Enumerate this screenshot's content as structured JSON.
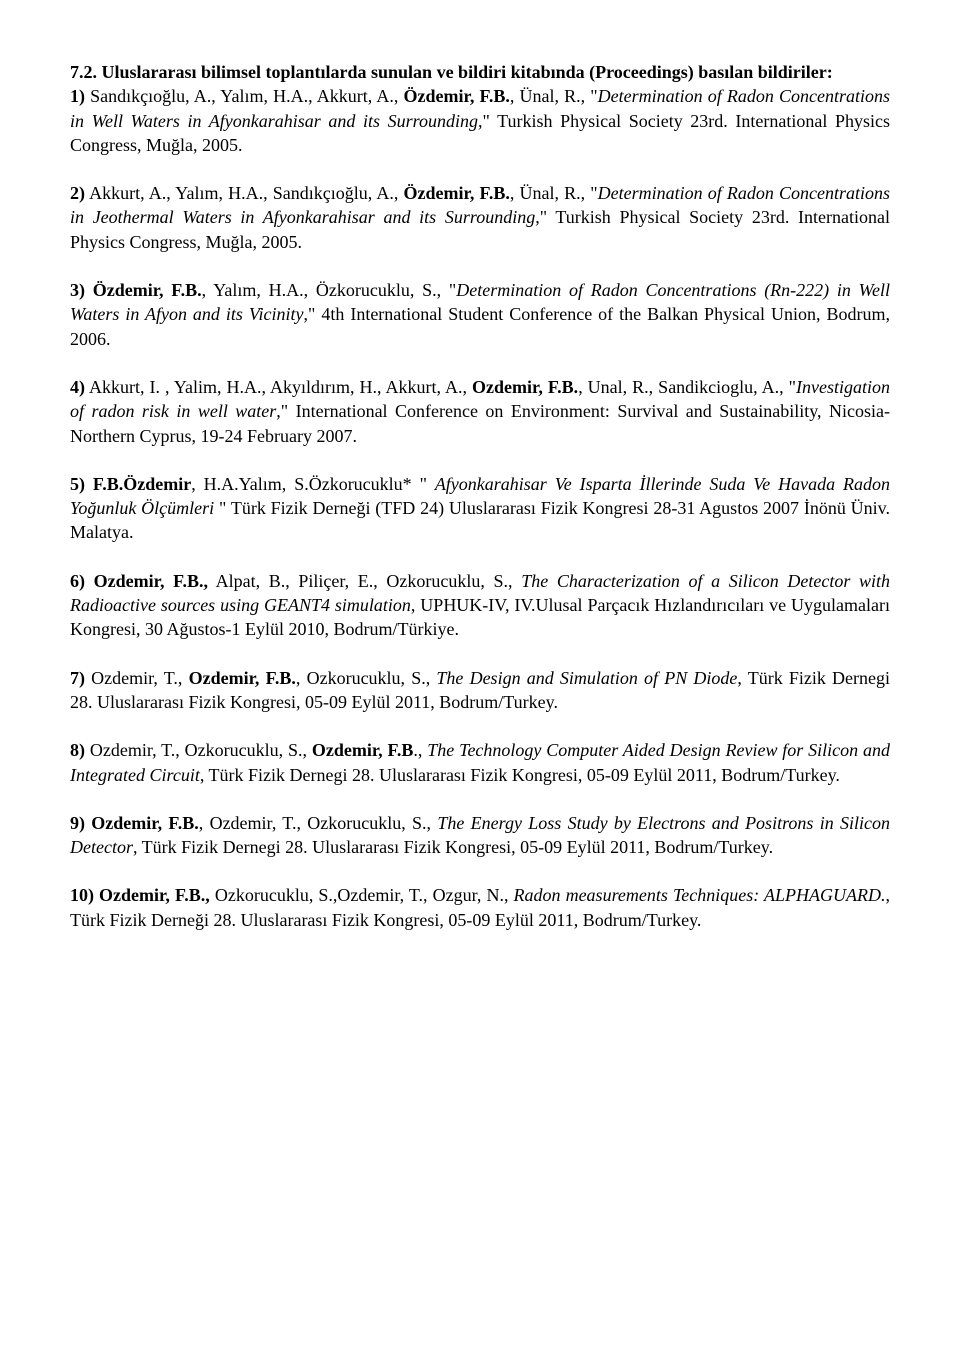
{
  "heading": "7.2. Uluslararası bilimsel toplantılarda sunulan ve bildiri kitabında (Proceedings) basılan bildiriler:",
  "entries": [
    {
      "parts": [
        {
          "t": "1) ",
          "b": true
        },
        {
          "t": "Sandıkçıoğlu, A., Yalım, H.A., Akkurt, A., "
        },
        {
          "t": "Özdemir, F.B.",
          "b": true
        },
        {
          "t": ", Ünal, R., \""
        },
        {
          "t": "Determination of Radon Concentrations in Well Waters in Afyonkarahisar and its Surrounding",
          "i": true
        },
        {
          "t": ",\" Turkish Physical Society 23rd. International Physics Congress, Muğla, 2005."
        }
      ]
    },
    {
      "parts": [
        {
          "t": "2)",
          "b": true
        },
        {
          "t": " Akkurt, A., Yalım, H.A., Sandıkçıoğlu, A., "
        },
        {
          "t": "Özdemir, F.B.",
          "b": true
        },
        {
          "t": ", Ünal, R., \""
        },
        {
          "t": "Determination of Radon Concentrations in Jeothermal Waters in Afyonkarahisar and its Surrounding",
          "i": true
        },
        {
          "t": ",\" Turkish Physical Society 23rd. International Physics Congress, Muğla, 2005."
        }
      ]
    },
    {
      "parts": [
        {
          "t": "3) Özdemir, F.B.",
          "b": true
        },
        {
          "t": ", Yalım, H.A., Özkorucuklu, S., \""
        },
        {
          "t": "Determination of Radon Concentrations (Rn-222) in Well Waters in Afyon and its Vicinity",
          "i": true
        },
        {
          "t": ",\" 4th International Student Conference of the Balkan Physical Union, Bodrum, 2006."
        }
      ]
    },
    {
      "parts": [
        {
          "t": "4)",
          "b": true
        },
        {
          "t": " Akkurt, I. , Yalim, H.A., Akyıldırım, H., Akkurt, A., "
        },
        {
          "t": "Ozdemir, F.B.",
          "b": true
        },
        {
          "t": ", Unal, R., Sandikcioglu, A., \""
        },
        {
          "t": "Investigation of radon risk in well water",
          "i": true
        },
        {
          "t": ",\" International Conference on Environment: Survival and Sustainability, Nicosia-Northern Cyprus, 19-24 February 2007."
        }
      ]
    },
    {
      "parts": [
        {
          "t": "5) F.B.Özdemir",
          "b": true
        },
        {
          "t": ", H.A.Yalım, S.Özkorucuklu* \" "
        },
        {
          "t": "Afyonkarahisar Ve Isparta İllerinde Suda Ve Havada Radon Yoğunluk Ölçümleri",
          "i": true
        },
        {
          "t": " \" Türk Fizik Derneği (TFD 24) Uluslararası Fizik Kongresi 28-31 Agustos 2007 İnönü Üniv. Malatya."
        }
      ]
    },
    {
      "parts": [
        {
          "t": "6) Ozdemir, F.B.,",
          "b": true
        },
        {
          "t": " Alpat, B., Piliçer, E., Ozkorucuklu, S., "
        },
        {
          "t": "The Characterization of a Silicon Detector with Radioactive sources using GEANT4 simulation",
          "i": true
        },
        {
          "t": ", UPHUK-IV, IV.Ulusal Parçacık Hızlandırıcıları ve Uygulamaları Kongresi, 30 Ağustos-1 Eylül 2010, Bodrum/Türkiye."
        }
      ]
    },
    {
      "parts": [
        {
          "t": "7)",
          "b": true
        },
        {
          "t": " Ozdemir, T., "
        },
        {
          "t": "Ozdemir, F.B.",
          "b": true
        },
        {
          "t": ", Ozkorucuklu, S., "
        },
        {
          "t": "The Design and Simulation of PN Diode",
          "i": true
        },
        {
          "t": ", Türk Fizik Dernegi 28. Uluslararası Fizik Kongresi, 05-09 Eylül 2011, Bodrum/Turkey."
        }
      ]
    },
    {
      "parts": [
        {
          "t": "8)",
          "b": true
        },
        {
          "t": " Ozdemir, T., Ozkorucuklu, S., "
        },
        {
          "t": "Ozdemir, F.B",
          "b": true
        },
        {
          "t": "., "
        },
        {
          "t": "The Technology Computer Aided Design Review for Silicon and Integrated Circuit",
          "i": true
        },
        {
          "t": ", Türk Fizik Dernegi 28. Uluslararası Fizik Kongresi, 05-09 Eylül 2011, Bodrum/Turkey."
        }
      ]
    },
    {
      "parts": [
        {
          "t": "9) Ozdemir, F.B.",
          "b": true
        },
        {
          "t": ", Ozdemir, T., Ozkorucuklu, S., "
        },
        {
          "t": "The Energy Loss Study by Electrons and Positrons in Silicon Detector",
          "i": true
        },
        {
          "t": ", Türk Fizik Dernegi 28. Uluslararası Fizik Kongresi, 05-09 Eylül 2011, Bodrum/Turkey."
        }
      ]
    },
    {
      "parts": [
        {
          "t": "10) Ozdemir, F.B.,",
          "b": true
        },
        {
          "t": " Ozkorucuklu, S.,Ozdemir, T., Ozgur, N., "
        },
        {
          "t": "Radon measurements Techniques: ALPHAGUARD.",
          "i": true
        },
        {
          "t": ", Türk Fizik Derneği 28. Uluslararası Fizik Kongresi, 05-09 Eylül 2011, Bodrum/Turkey."
        }
      ]
    }
  ]
}
